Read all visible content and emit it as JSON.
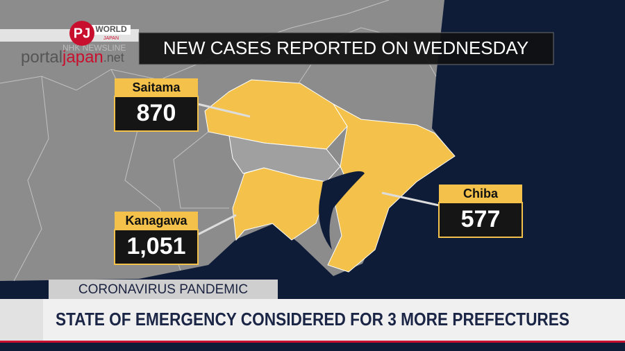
{
  "logo": {
    "initials": "PJ",
    "word1": "portal",
    "word2": "japan",
    "word3": ".net",
    "channel": "WORLD",
    "channel_sub": "JAPAN",
    "program": "NHK NEWSLINE"
  },
  "map": {
    "title": "NEW CASES REPORTED ON WEDNESDAY",
    "callouts": [
      {
        "name": "Saitama",
        "cases": "870"
      },
      {
        "name": "Kanagawa",
        "cases": "1,051"
      },
      {
        "name": "Chiba",
        "cases": "577"
      }
    ]
  },
  "ticker": {
    "topic": "CORONAVIRUS PANDEMIC",
    "headline": "STATE OF EMERGENCY CONSIDERED FOR 3 MORE PREFECTURES"
  }
}
